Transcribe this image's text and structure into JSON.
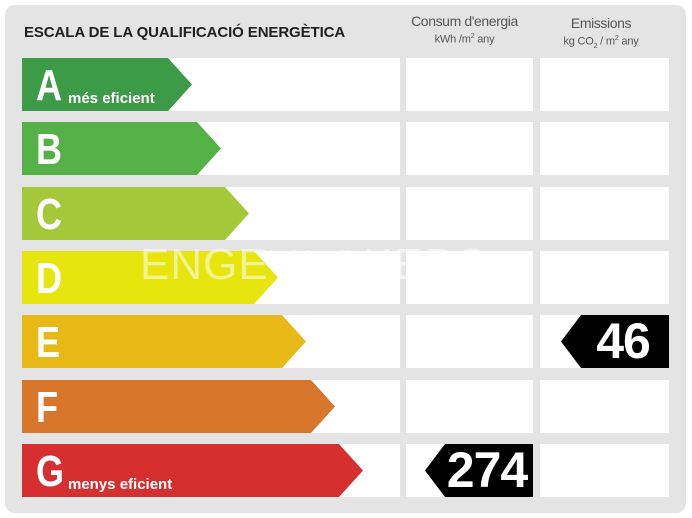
{
  "title": "ESCALA DE LA QUALIFICACIÓ ENERGÈTICA",
  "columns": {
    "consumption": {
      "label": "Consum d'energia",
      "unit_prefix": "kWh /m",
      "unit_exp": "2",
      "unit_suffix": " any"
    },
    "emissions": {
      "label": "Emissions",
      "unit_prefix": "kg CO",
      "unit_sub": "2",
      "unit_mid": " / m",
      "unit_exp": "2",
      "unit_suffix": " any"
    }
  },
  "ratings": [
    {
      "letter": "A",
      "note": "més eficient",
      "color": "#3d9a47"
    },
    {
      "letter": "B",
      "note": "",
      "color": "#54b145"
    },
    {
      "letter": "C",
      "note": "",
      "color": "#a3c93a"
    },
    {
      "letter": "D",
      "note": "",
      "color": "#e7e50e"
    },
    {
      "letter": "E",
      "note": "",
      "color": "#e8b916"
    },
    {
      "letter": "F",
      "note": "",
      "color": "#d8762b"
    },
    {
      "letter": "G",
      "note": "menys eficient",
      "color": "#d5302f"
    }
  ],
  "consumption_marker": {
    "rating": "G",
    "value": "274"
  },
  "emissions_marker": {
    "rating": "E",
    "value": "46"
  },
  "watermark": {
    "left": "ENGE",
    "middle": "habitaclia",
    "right": "KERS"
  }
}
